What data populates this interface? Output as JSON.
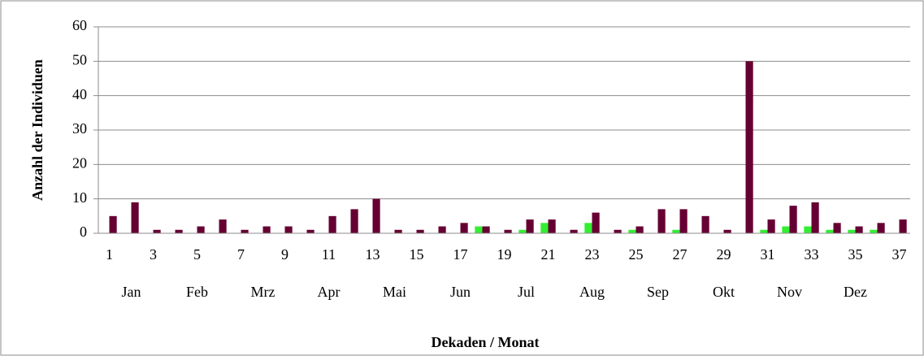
{
  "chart_data": {
    "type": "bar",
    "ylabel": "Anzahl der Individuen",
    "xlabel": "Dekaden / Monat",
    "categories": [
      1,
      null,
      3,
      null,
      5,
      null,
      7,
      null,
      9,
      null,
      11,
      null,
      13,
      null,
      15,
      null,
      17,
      null,
      19,
      null,
      21,
      null,
      23,
      null,
      25,
      null,
      27,
      null,
      29,
      null,
      31,
      null,
      33,
      null,
      35,
      null,
      37
    ],
    "months": [
      "Jan",
      "Feb",
      "Mrz",
      "Apr",
      "Mai",
      "Jun",
      "Jul",
      "Aug",
      "Sep",
      "Okt",
      "Nov",
      "Dez"
    ],
    "series": [
      {
        "color": "#33ee33",
        "values": [
          0,
          0,
          0,
          0,
          0,
          0,
          0,
          0,
          0,
          0,
          0,
          0,
          0,
          0,
          0,
          0,
          0,
          2,
          0,
          1,
          3,
          0,
          3,
          0,
          1,
          0,
          1,
          0,
          0,
          0,
          1,
          2,
          2,
          1,
          1,
          1,
          0
        ]
      },
      {
        "color": "#660033",
        "values": [
          5,
          9,
          1,
          1,
          2,
          4,
          1,
          2,
          2,
          1,
          5,
          7,
          10,
          1,
          1,
          2,
          3,
          2,
          1,
          4,
          4,
          1,
          6,
          1,
          2,
          7,
          7,
          5,
          1,
          50,
          4,
          8,
          9,
          3,
          2,
          3,
          4
        ]
      }
    ],
    "ylim": [
      0,
      60
    ],
    "yticks": [
      0,
      10,
      20,
      30,
      40,
      50,
      60
    ],
    "grid": true
  }
}
